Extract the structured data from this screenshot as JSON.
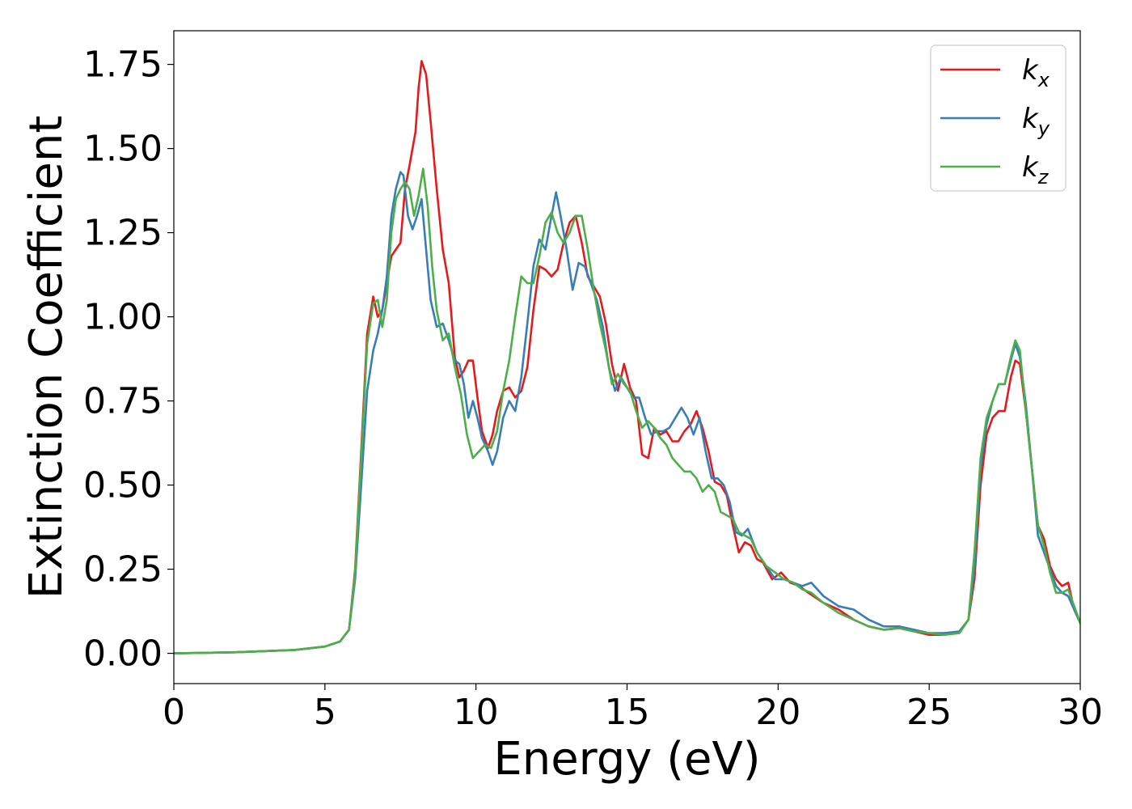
{
  "chart_data": {
    "type": "line",
    "title": "",
    "xlabel": "Energy (eV)",
    "ylabel": "Extinction Coefficient",
    "xlim": [
      0,
      30
    ],
    "ylim": [
      -0.09,
      1.85
    ],
    "xticks": [
      0,
      5,
      10,
      15,
      20,
      25,
      30
    ],
    "xtick_labels": [
      "0",
      "5",
      "10",
      "15",
      "20",
      "25",
      "30"
    ],
    "yticks": [
      0.0,
      0.25,
      0.5,
      0.75,
      1.0,
      1.25,
      1.5,
      1.75
    ],
    "ytick_labels": [
      "0.00",
      "0.25",
      "0.50",
      "0.75",
      "1.00",
      "1.25",
      "1.50",
      "1.75"
    ],
    "grid": false,
    "legend_position": "top-right",
    "series": [
      {
        "name": "k_x",
        "label_main": "k",
        "label_sub": "x",
        "color": "#e41a1c",
        "x": [
          0,
          2,
          4,
          5,
          5.5,
          5.8,
          6.0,
          6.2,
          6.4,
          6.6,
          6.75,
          6.9,
          7.05,
          7.2,
          7.35,
          7.5,
          7.65,
          7.8,
          8.0,
          8.1,
          8.2,
          8.35,
          8.5,
          8.7,
          8.9,
          9.1,
          9.3,
          9.45,
          9.6,
          9.75,
          9.9,
          10.05,
          10.2,
          10.4,
          10.55,
          10.7,
          10.9,
          11.1,
          11.3,
          11.5,
          11.7,
          11.9,
          12.1,
          12.3,
          12.5,
          12.7,
          12.9,
          13.1,
          13.3,
          13.5,
          13.7,
          13.9,
          14.1,
          14.3,
          14.5,
          14.7,
          14.9,
          15.1,
          15.3,
          15.5,
          15.7,
          15.9,
          16.1,
          16.3,
          16.5,
          16.7,
          16.9,
          17.1,
          17.3,
          17.5,
          17.7,
          17.9,
          18.1,
          18.3,
          18.5,
          18.7,
          18.9,
          19.1,
          19.3,
          19.5,
          19.8,
          20.1,
          20.4,
          20.7,
          21.0,
          21.5,
          22.0,
          22.5,
          23.0,
          23.5,
          24.0,
          24.5,
          25.0,
          25.5,
          26.0,
          26.3,
          26.5,
          26.7,
          26.9,
          27.1,
          27.3,
          27.5,
          27.7,
          27.85,
          28.0,
          28.2,
          28.4,
          28.6,
          28.8,
          29.0,
          29.2,
          29.4,
          29.6,
          29.8,
          30.0
        ],
        "y": [
          0.0,
          0.003,
          0.01,
          0.02,
          0.035,
          0.07,
          0.25,
          0.6,
          0.95,
          1.06,
          1.0,
          1.02,
          1.1,
          1.18,
          1.2,
          1.22,
          1.38,
          1.45,
          1.55,
          1.68,
          1.76,
          1.72,
          1.58,
          1.38,
          1.2,
          1.1,
          0.88,
          0.82,
          0.84,
          0.87,
          0.87,
          0.76,
          0.66,
          0.61,
          0.65,
          0.72,
          0.78,
          0.79,
          0.76,
          0.78,
          0.85,
          1.02,
          1.15,
          1.14,
          1.12,
          1.14,
          1.22,
          1.28,
          1.3,
          1.22,
          1.12,
          1.09,
          1.06,
          0.98,
          0.86,
          0.78,
          0.86,
          0.79,
          0.75,
          0.59,
          0.58,
          0.67,
          0.65,
          0.66,
          0.63,
          0.63,
          0.66,
          0.68,
          0.72,
          0.67,
          0.6,
          0.51,
          0.5,
          0.47,
          0.38,
          0.3,
          0.33,
          0.32,
          0.28,
          0.27,
          0.22,
          0.24,
          0.21,
          0.2,
          0.18,
          0.15,
          0.13,
          0.1,
          0.08,
          0.07,
          0.075,
          0.065,
          0.055,
          0.055,
          0.065,
          0.1,
          0.22,
          0.5,
          0.65,
          0.7,
          0.72,
          0.72,
          0.82,
          0.87,
          0.86,
          0.72,
          0.55,
          0.38,
          0.34,
          0.26,
          0.22,
          0.2,
          0.21,
          0.13,
          0.09
        ]
      },
      {
        "name": "k_y",
        "label_main": "k",
        "label_sub": "y",
        "color": "#377eb8",
        "x": [
          0,
          2,
          4,
          5,
          5.5,
          5.8,
          6.0,
          6.2,
          6.4,
          6.6,
          6.75,
          6.9,
          7.05,
          7.2,
          7.35,
          7.5,
          7.6,
          7.75,
          7.9,
          8.05,
          8.2,
          8.35,
          8.5,
          8.7,
          8.9,
          9.1,
          9.3,
          9.45,
          9.6,
          9.75,
          9.9,
          10.05,
          10.2,
          10.4,
          10.55,
          10.7,
          10.9,
          11.1,
          11.3,
          11.5,
          11.7,
          11.9,
          12.1,
          12.3,
          12.5,
          12.65,
          12.8,
          13.0,
          13.2,
          13.4,
          13.6,
          13.8,
          14.0,
          14.2,
          14.4,
          14.6,
          14.8,
          15.0,
          15.2,
          15.4,
          15.6,
          15.8,
          16.0,
          16.2,
          16.4,
          16.6,
          16.8,
          17.0,
          17.2,
          17.4,
          17.6,
          17.8,
          18.0,
          18.2,
          18.4,
          18.6,
          18.8,
          19.0,
          19.3,
          19.6,
          19.9,
          20.2,
          20.5,
          20.8,
          21.1,
          21.5,
          22.0,
          22.5,
          23.0,
          23.5,
          24.0,
          24.5,
          25.0,
          25.5,
          26.0,
          26.3,
          26.5,
          26.7,
          26.9,
          27.1,
          27.3,
          27.5,
          27.7,
          27.85,
          28.0,
          28.2,
          28.4,
          28.6,
          28.8,
          29.0,
          29.2,
          29.4,
          29.6,
          29.8,
          30.0
        ],
        "y": [
          0.0,
          0.003,
          0.01,
          0.02,
          0.035,
          0.07,
          0.22,
          0.5,
          0.78,
          0.9,
          0.95,
          1.02,
          1.12,
          1.3,
          1.38,
          1.43,
          1.42,
          1.3,
          1.26,
          1.3,
          1.35,
          1.2,
          1.05,
          0.97,
          0.98,
          0.93,
          0.87,
          0.86,
          0.8,
          0.7,
          0.75,
          0.7,
          0.64,
          0.6,
          0.56,
          0.6,
          0.7,
          0.75,
          0.72,
          0.82,
          0.98,
          1.15,
          1.23,
          1.2,
          1.3,
          1.37,
          1.3,
          1.2,
          1.08,
          1.16,
          1.15,
          1.1,
          1.05,
          0.97,
          0.85,
          0.78,
          0.82,
          0.79,
          0.76,
          0.76,
          0.7,
          0.65,
          0.66,
          0.66,
          0.67,
          0.7,
          0.73,
          0.7,
          0.65,
          0.7,
          0.6,
          0.52,
          0.52,
          0.5,
          0.45,
          0.36,
          0.35,
          0.37,
          0.3,
          0.26,
          0.22,
          0.22,
          0.21,
          0.2,
          0.21,
          0.17,
          0.14,
          0.13,
          0.1,
          0.08,
          0.08,
          0.07,
          0.06,
          0.06,
          0.065,
          0.1,
          0.25,
          0.55,
          0.68,
          0.75,
          0.8,
          0.8,
          0.87,
          0.92,
          0.88,
          0.74,
          0.55,
          0.35,
          0.3,
          0.25,
          0.2,
          0.18,
          0.17,
          0.13,
          0.09
        ]
      },
      {
        "name": "k_z",
        "label_main": "k",
        "label_sub": "z",
        "color": "#4daf4a",
        "x": [
          0,
          2,
          4,
          5,
          5.5,
          5.8,
          6.0,
          6.2,
          6.4,
          6.6,
          6.75,
          6.9,
          7.05,
          7.2,
          7.35,
          7.5,
          7.65,
          7.8,
          7.95,
          8.1,
          8.25,
          8.4,
          8.55,
          8.7,
          8.9,
          9.1,
          9.3,
          9.5,
          9.7,
          9.9,
          10.1,
          10.3,
          10.5,
          10.7,
          10.9,
          11.1,
          11.3,
          11.5,
          11.7,
          11.9,
          12.1,
          12.3,
          12.5,
          12.7,
          12.9,
          13.1,
          13.3,
          13.5,
          13.7,
          13.9,
          14.1,
          14.3,
          14.5,
          14.7,
          14.9,
          15.1,
          15.3,
          15.5,
          15.7,
          15.9,
          16.1,
          16.3,
          16.5,
          16.7,
          16.9,
          17.1,
          17.3,
          17.5,
          17.7,
          17.9,
          18.1,
          18.3,
          18.5,
          18.7,
          18.9,
          19.1,
          19.3,
          19.6,
          19.9,
          20.2,
          20.5,
          20.8,
          21.1,
          21.5,
          22.0,
          22.5,
          23.0,
          23.5,
          24.0,
          24.5,
          25.0,
          25.5,
          26.0,
          26.3,
          26.5,
          26.7,
          26.9,
          27.1,
          27.3,
          27.5,
          27.7,
          27.85,
          28.0,
          28.2,
          28.4,
          28.6,
          28.8,
          29.0,
          29.2,
          29.4,
          29.6,
          29.8,
          30.0
        ],
        "y": [
          0.0,
          0.003,
          0.01,
          0.02,
          0.035,
          0.07,
          0.24,
          0.58,
          0.92,
          1.04,
          1.05,
          0.97,
          1.05,
          1.25,
          1.35,
          1.38,
          1.4,
          1.38,
          1.3,
          1.36,
          1.44,
          1.33,
          1.15,
          1.02,
          0.93,
          0.95,
          0.85,
          0.77,
          0.65,
          0.58,
          0.6,
          0.62,
          0.61,
          0.66,
          0.78,
          0.87,
          1.0,
          1.12,
          1.1,
          1.1,
          1.18,
          1.28,
          1.31,
          1.25,
          1.22,
          1.25,
          1.3,
          1.3,
          1.2,
          1.08,
          0.98,
          0.9,
          0.8,
          0.83,
          0.8,
          0.78,
          0.72,
          0.67,
          0.69,
          0.67,
          0.64,
          0.62,
          0.58,
          0.56,
          0.54,
          0.54,
          0.52,
          0.48,
          0.5,
          0.48,
          0.42,
          0.41,
          0.4,
          0.36,
          0.35,
          0.34,
          0.3,
          0.26,
          0.24,
          0.22,
          0.21,
          0.19,
          0.18,
          0.15,
          0.12,
          0.1,
          0.08,
          0.07,
          0.075,
          0.065,
          0.06,
          0.055,
          0.06,
          0.1,
          0.3,
          0.58,
          0.7,
          0.75,
          0.8,
          0.8,
          0.88,
          0.93,
          0.9,
          0.72,
          0.55,
          0.38,
          0.32,
          0.24,
          0.18,
          0.18,
          0.19,
          0.14,
          0.09
        ]
      }
    ]
  }
}
